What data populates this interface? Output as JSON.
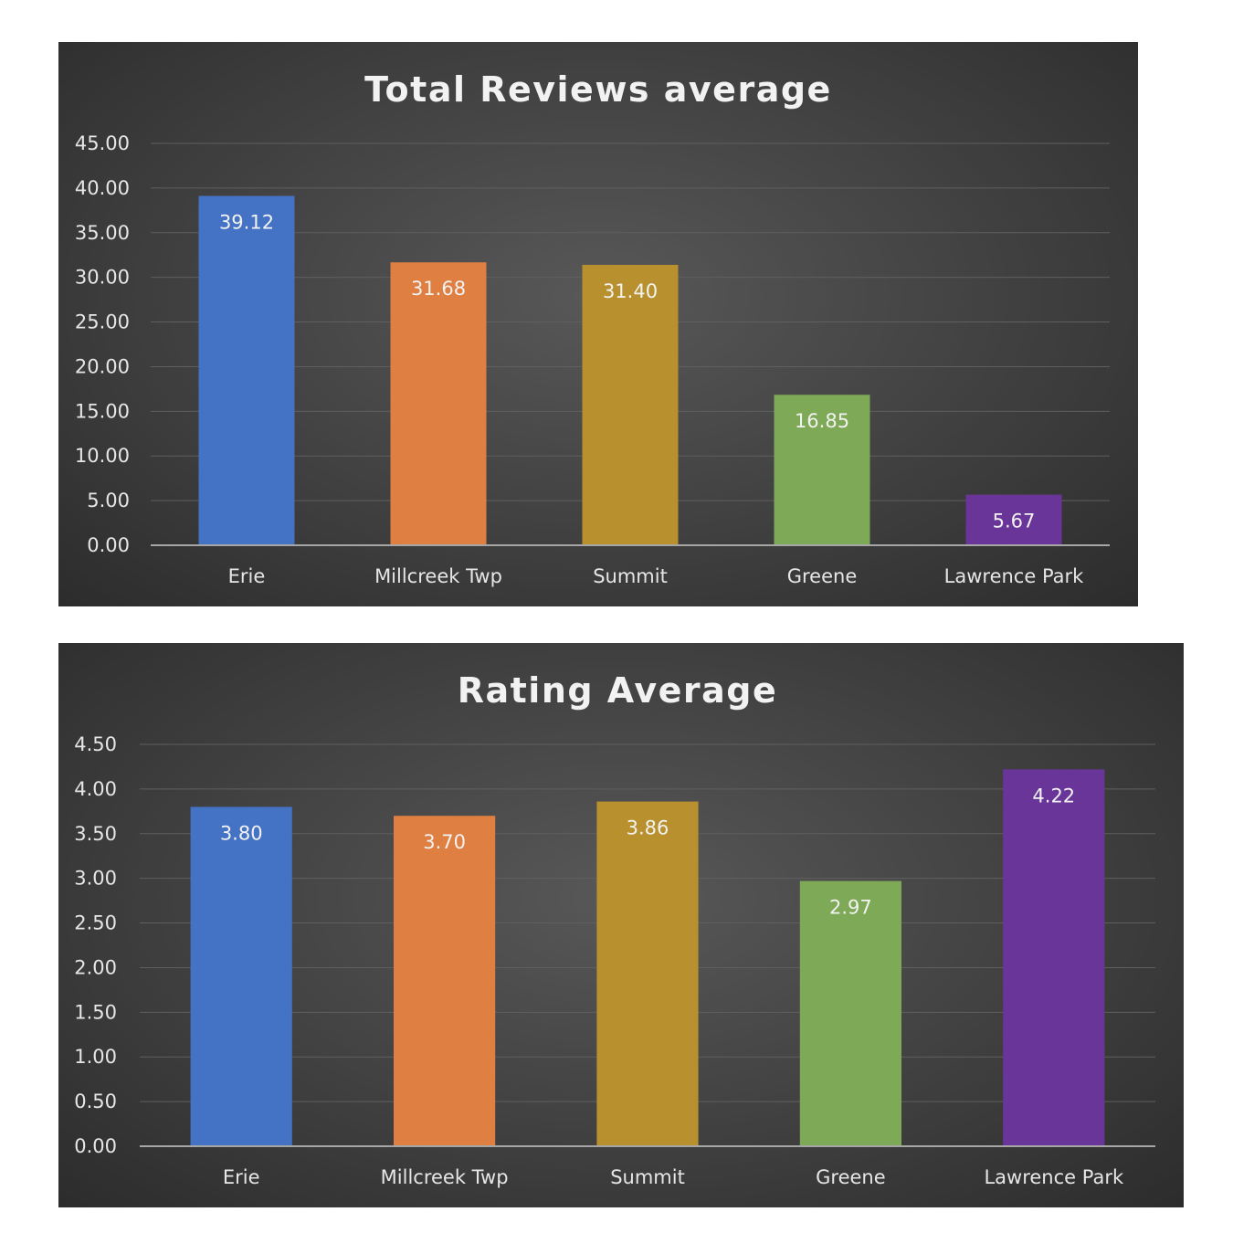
{
  "chart_data": [
    {
      "type": "bar",
      "title": "Total Reviews average",
      "categories": [
        "Erie",
        "Millcreek Twp",
        "Summit",
        "Greene",
        "Lawrence Park"
      ],
      "values": [
        39.12,
        31.68,
        31.4,
        16.85,
        5.67
      ],
      "data_labels": [
        "39.12",
        "31.68",
        "31.40",
        "16.85",
        "5.67"
      ],
      "ylim": [
        0,
        45
      ],
      "yticks": [
        "0.00",
        "5.00",
        "10.00",
        "15.00",
        "20.00",
        "25.00",
        "30.00",
        "35.00",
        "40.00",
        "45.00"
      ],
      "grid": true,
      "legend": "none",
      "colors": [
        "#4472c4",
        "#e07f42",
        "#b8912e",
        "#7ea956",
        "#6a3598"
      ]
    },
    {
      "type": "bar",
      "title": "Rating Average",
      "categories": [
        "Erie",
        "Millcreek Twp",
        "Summit",
        "Greene",
        "Lawrence Park"
      ],
      "values": [
        3.8,
        3.7,
        3.86,
        2.97,
        4.22
      ],
      "data_labels": [
        "3.80",
        "3.70",
        "3.86",
        "2.97",
        "4.22"
      ],
      "ylim": [
        0,
        4.5
      ],
      "yticks": [
        "0.00",
        "0.50",
        "1.00",
        "1.50",
        "2.00",
        "2.50",
        "3.00",
        "3.50",
        "4.00",
        "4.50"
      ],
      "grid": true,
      "legend": "none",
      "colors": [
        "#4472c4",
        "#e07f42",
        "#b8912e",
        "#7ea956",
        "#6a3598"
      ]
    }
  ]
}
